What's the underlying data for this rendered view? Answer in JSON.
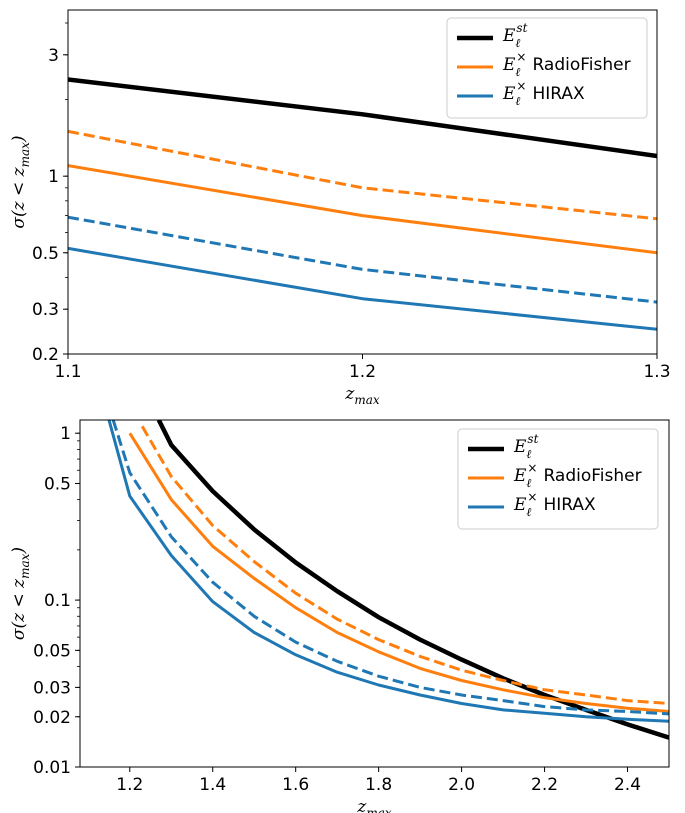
{
  "chart_data": [
    {
      "type": "line",
      "title": "",
      "xlabel": "z_max",
      "ylabel": "σ(z < z_max)",
      "xlim": [
        1.1,
        1.3
      ],
      "ylim": [
        0.2,
        4.5
      ],
      "yscale": "log",
      "xticks": [
        "1.1",
        "1.2",
        "1.3"
      ],
      "yticks": [
        "0.2",
        "0.3",
        "0.5",
        "1",
        "3"
      ],
      "legend_position": "top-right",
      "legend": [
        "E_ℓ^st",
        "E_ℓ^× RadioFisher",
        "E_ℓ^× HIRAX"
      ],
      "series": [
        {
          "name": "E_ℓ^st",
          "color": "#000000",
          "style": "solid",
          "width": "thick",
          "x": [
            1.1,
            1.2,
            1.3
          ],
          "y": [
            2.4,
            1.75,
            1.2
          ]
        },
        {
          "name": "E_ℓ^× RadioFisher",
          "color": "#ff7f0e",
          "style": "solid",
          "x": [
            1.1,
            1.2,
            1.3
          ],
          "y": [
            1.1,
            0.7,
            0.5
          ]
        },
        {
          "name": "E_ℓ^× RadioFisher (dashed)",
          "color": "#ff7f0e",
          "style": "dashed",
          "x": [
            1.1,
            1.2,
            1.3
          ],
          "y": [
            1.5,
            0.9,
            0.68
          ]
        },
        {
          "name": "E_ℓ^× HIRAX",
          "color": "#1f77b4",
          "style": "solid",
          "x": [
            1.1,
            1.2,
            1.3
          ],
          "y": [
            0.52,
            0.33,
            0.25
          ]
        },
        {
          "name": "E_ℓ^× HIRAX (dashed)",
          "color": "#1f77b4",
          "style": "dashed",
          "x": [
            1.1,
            1.2,
            1.3
          ],
          "y": [
            0.69,
            0.43,
            0.32
          ]
        }
      ]
    },
    {
      "type": "line",
      "title": "",
      "xlabel": "z_max",
      "ylabel": "σ(z < z_max)",
      "xlim": [
        1.08,
        2.5
      ],
      "ylim": [
        0.01,
        1.2
      ],
      "yscale": "log",
      "xticks": [
        "1.2",
        "1.4",
        "1.6",
        "1.8",
        "2.0",
        "2.2",
        "2.4"
      ],
      "yticks": [
        "0.01",
        "0.02",
        "0.03",
        "0.05",
        "0.1",
        "0.5",
        "1"
      ],
      "legend_position": "top-right",
      "legend": [
        "E_ℓ^st",
        "E_ℓ^× RadioFisher",
        "E_ℓ^× HIRAX"
      ],
      "series": [
        {
          "name": "E_ℓ^st",
          "color": "#000000",
          "style": "solid",
          "width": "thick",
          "x": [
            1.27,
            1.3,
            1.4,
            1.5,
            1.6,
            1.7,
            1.8,
            1.9,
            2.0,
            2.1,
            2.2,
            2.3,
            2.4,
            2.5
          ],
          "y": [
            1.2,
            0.85,
            0.45,
            0.265,
            0.168,
            0.113,
            0.079,
            0.058,
            0.044,
            0.034,
            0.027,
            0.022,
            0.018,
            0.015
          ]
        },
        {
          "name": "E_ℓ^× RadioFisher",
          "color": "#ff7f0e",
          "style": "solid",
          "x": [
            1.2,
            1.3,
            1.4,
            1.5,
            1.6,
            1.7,
            1.8,
            1.9,
            2.0,
            2.1,
            2.2,
            2.3,
            2.4,
            2.5
          ],
          "y": [
            1.0,
            0.4,
            0.21,
            0.135,
            0.09,
            0.064,
            0.049,
            0.039,
            0.033,
            0.029,
            0.026,
            0.024,
            0.0225,
            0.0215
          ]
        },
        {
          "name": "E_ℓ^× RadioFisher (dashed)",
          "color": "#ff7f0e",
          "style": "dashed",
          "x": [
            1.23,
            1.3,
            1.4,
            1.5,
            1.6,
            1.7,
            1.8,
            1.9,
            2.0,
            2.1,
            2.2,
            2.3,
            2.4,
            2.5
          ],
          "y": [
            1.1,
            0.55,
            0.28,
            0.17,
            0.11,
            0.077,
            0.058,
            0.046,
            0.038,
            0.033,
            0.029,
            0.027,
            0.025,
            0.024
          ]
        },
        {
          "name": "E_ℓ^× HIRAX",
          "color": "#1f77b4",
          "style": "solid",
          "x": [
            1.15,
            1.2,
            1.3,
            1.4,
            1.5,
            1.6,
            1.7,
            1.8,
            1.9,
            2.0,
            2.1,
            2.2,
            2.3,
            2.4,
            2.5
          ],
          "y": [
            1.2,
            0.42,
            0.185,
            0.098,
            0.064,
            0.047,
            0.037,
            0.031,
            0.027,
            0.024,
            0.022,
            0.021,
            0.02,
            0.0193,
            0.0188
          ]
        },
        {
          "name": "E_ℓ^× HIRAX (dashed)",
          "color": "#1f77b4",
          "style": "dashed",
          "x": [
            1.16,
            1.2,
            1.3,
            1.4,
            1.5,
            1.6,
            1.7,
            1.8,
            1.9,
            2.0,
            2.1,
            2.2,
            2.3,
            2.4,
            2.5
          ],
          "y": [
            1.2,
            0.58,
            0.24,
            0.128,
            0.08,
            0.056,
            0.043,
            0.035,
            0.03,
            0.027,
            0.025,
            0.023,
            0.022,
            0.0215,
            0.0208
          ]
        }
      ]
    }
  ]
}
